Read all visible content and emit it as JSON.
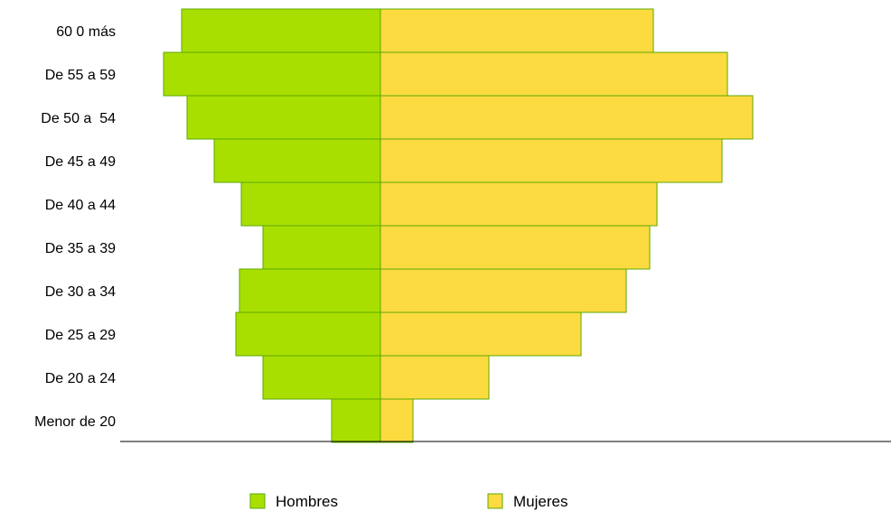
{
  "chart_data": {
    "type": "bar",
    "orientation": "horizontal",
    "categories": [
      "60 0 más",
      "De 55 a 59",
      "De 50 a  54",
      "De 45 a 49",
      "De 40 a 44",
      "De 35 a 39",
      "De 30 a 34",
      "De 25 a 29",
      "De 20 a 24",
      "Menor de 20"
    ],
    "series": [
      {
        "name": "Hombres",
        "color": "#A9DF00",
        "values": [
          220,
          240,
          214,
          184,
          154,
          130,
          156,
          160,
          130,
          54
        ]
      },
      {
        "name": "Mujeres",
        "color": "#FCDB40",
        "values": [
          302,
          384,
          412,
          378,
          306,
          298,
          272,
          222,
          120,
          36
        ]
      }
    ],
    "xlabel": "",
    "ylabel": "",
    "grid": false,
    "legend_position": "bottom"
  },
  "colors": {
    "edge": "#5DAA00",
    "axis": "#000000"
  }
}
